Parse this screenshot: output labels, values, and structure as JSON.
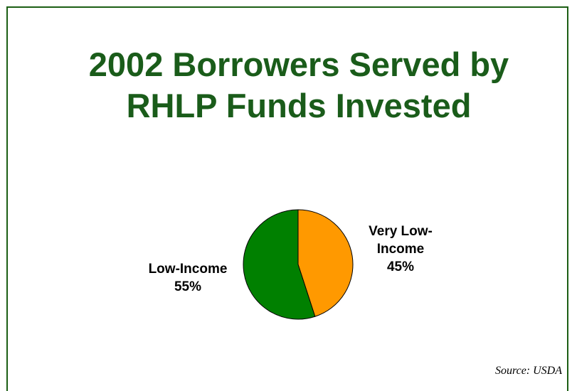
{
  "title": {
    "line1": "2002 Borrowers Served by",
    "line2": "RHLP Funds Invested"
  },
  "chart_data": {
    "type": "pie",
    "title": "2002 Borrowers Served by RHLP Funds Invested",
    "slices": [
      {
        "label_lines": [
          "Very Low-",
          "Income",
          "45%"
        ],
        "name": "Very Low-Income",
        "value": 45,
        "color": "#ff9900"
      },
      {
        "label_lines": [
          "Low-Income",
          "55%"
        ],
        "name": "Low-Income",
        "value": 55,
        "color": "#008000"
      }
    ]
  },
  "source": "Source:  USDA"
}
